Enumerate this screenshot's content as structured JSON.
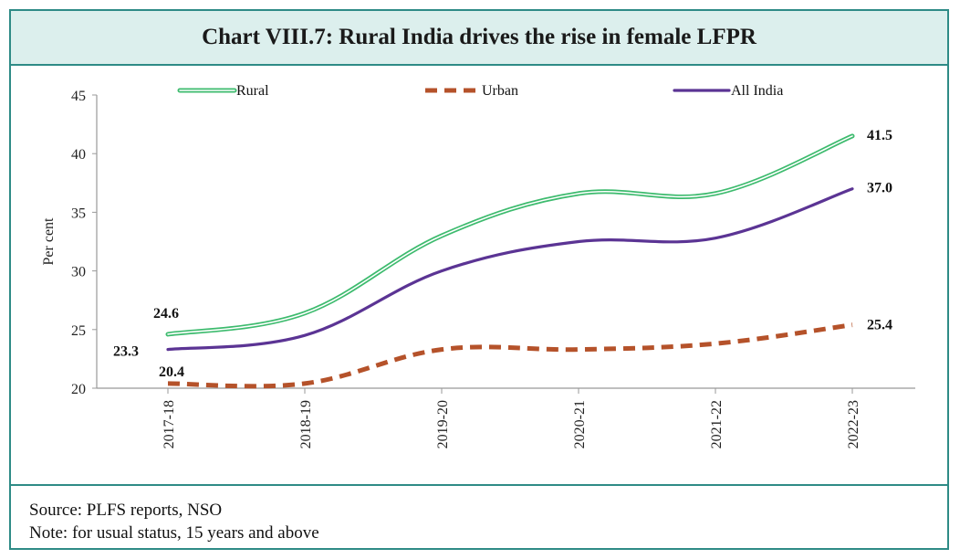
{
  "title": "Chart VIII.7: Rural India drives the rise in female LFPR",
  "footer": {
    "source": "Source: PLFS reports, NSO",
    "note": "Note: for usual status, 15 years and above"
  },
  "chart_data": {
    "type": "line",
    "title": "Chart VIII.7: Rural India drives the rise in female LFPR",
    "xlabel": "",
    "ylabel": "Per cent",
    "ylim": [
      20,
      45
    ],
    "yticks": [
      "20",
      "25",
      "30",
      "35",
      "40",
      "45"
    ],
    "categories": [
      "2017-18",
      "2018-19",
      "2019-20",
      "2020-21",
      "2021-22",
      "2022-23"
    ],
    "legend_position": "top",
    "series": [
      {
        "name": "Rural",
        "style": "double-line",
        "color": "#3dbb6e",
        "values": [
          24.6,
          26.4,
          33.0,
          36.6,
          36.6,
          41.5
        ],
        "labels": [
          "24.6",
          "",
          "",
          "",
          "",
          "41.5"
        ]
      },
      {
        "name": "Urban",
        "style": "dashed",
        "color": "#b5522a",
        "values": [
          20.4,
          20.4,
          23.3,
          23.3,
          23.8,
          25.4
        ],
        "labels": [
          "20.4",
          "",
          "",
          "",
          "",
          "25.4"
        ]
      },
      {
        "name": "All India",
        "style": "solid",
        "color": "#5b3494",
        "values": [
          23.3,
          24.5,
          30.0,
          32.5,
          32.8,
          37.0
        ],
        "labels": [
          "23.3",
          "",
          "",
          "",
          "",
          "37.0"
        ]
      }
    ]
  }
}
